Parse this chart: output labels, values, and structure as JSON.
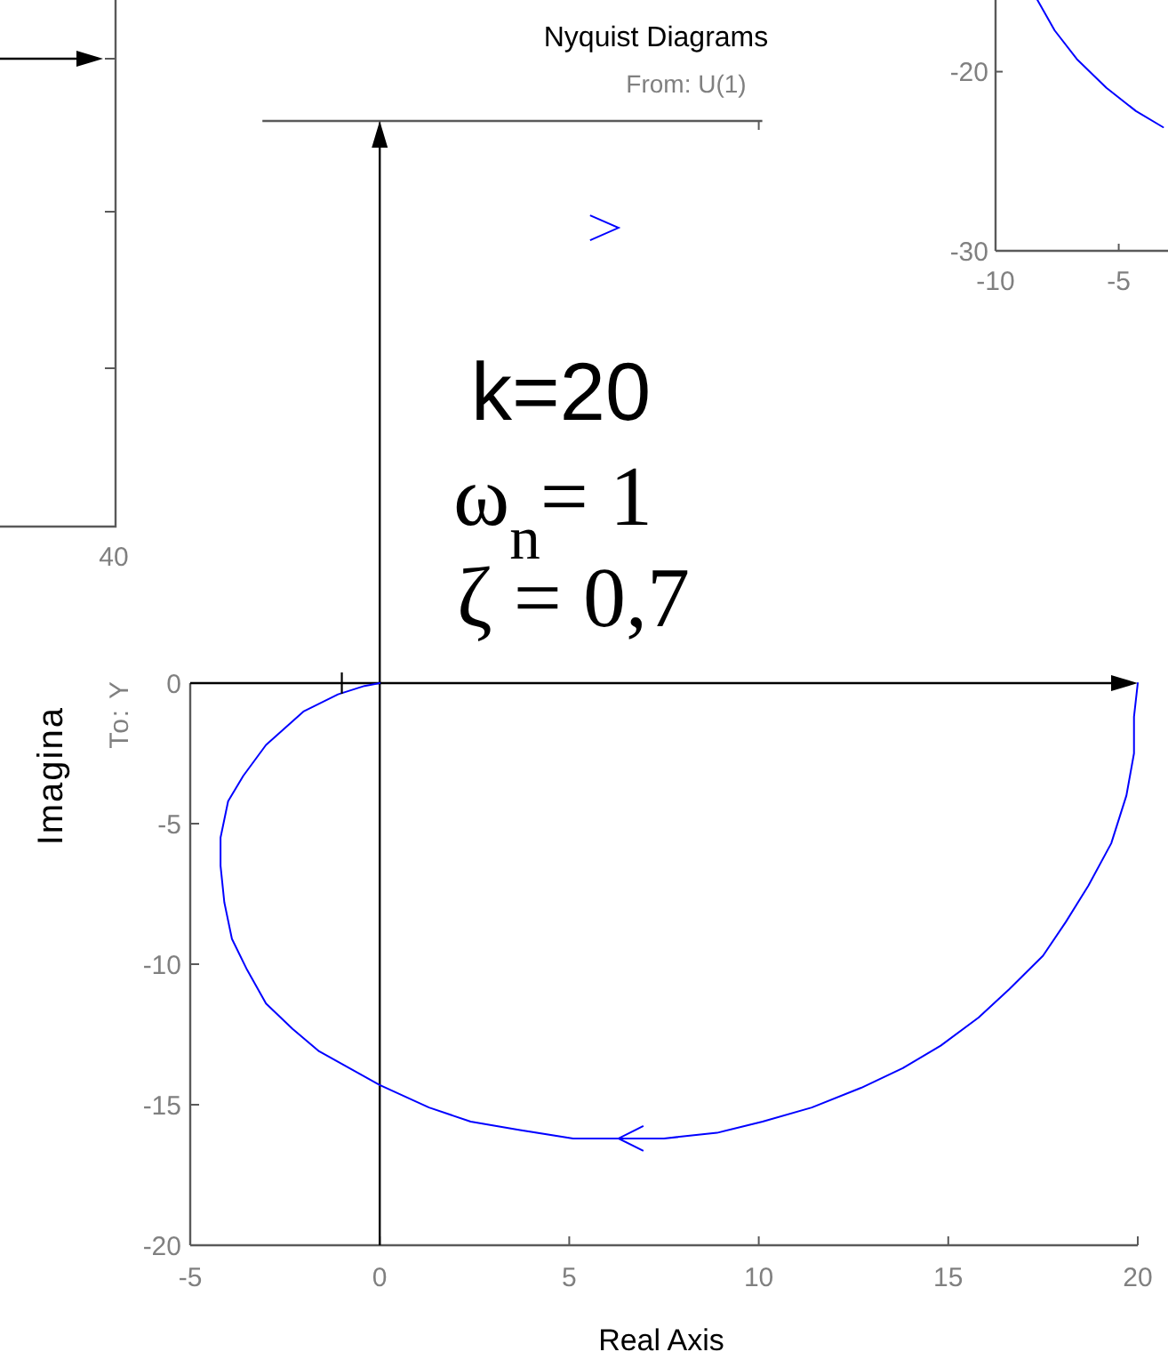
{
  "chart_data": [
    {
      "type": "other",
      "annotations": [
        "40"
      ]
    },
    {
      "type": "line",
      "title": "Nyquist Diagrams",
      "subtitle": "From: U(1)",
      "xlabel": "Real Axis",
      "ylabel": "Imagina",
      "annotations": [
        "To: Y",
        "k=20",
        "ω$_{n}$= 1",
        "ζ = 0,7"
      ],
      "xlim": [
        -5,
        20
      ],
      "ylim": [
        -20,
        0
      ],
      "xticks": [
        -5,
        0,
        5,
        10,
        15,
        20
      ],
      "yticks": [
        -20,
        -15,
        -10,
        -5,
        0
      ],
      "series": [
        {
          "type": "line",
          "color": "#0000ff",
          "x": [
            20,
            19.9,
            19.9,
            19.7,
            19.3,
            18.7,
            18.1,
            17.5,
            16.6,
            15.8,
            14.8,
            13.8,
            12.7,
            11.4,
            10.1,
            8.9,
            7.5,
            5.1,
            3.7,
            2.4,
            1.3,
            0,
            -0.8,
            -1.6,
            -2.3,
            -3,
            -3.5,
            -3.9,
            -4.1,
            -4.2,
            -4.2,
            -4,
            -3.6,
            -3,
            -2,
            -1.1,
            -0.4,
            0
          ],
          "values": [
            0,
            -1.2,
            -2.5,
            -4,
            -5.7,
            -7.2,
            -8.5,
            -9.7,
            -10.9,
            -11.9,
            -12.9,
            -13.7,
            -14.4,
            -15.1,
            -15.6,
            -16,
            -16.2,
            -16.2,
            -15.9,
            -15.6,
            -15.1,
            -14.3,
            -13.7,
            -13.1,
            -12.3,
            -11.4,
            -10.2,
            -9.1,
            -7.8,
            -6.5,
            -5.5,
            -4.2,
            -3.3,
            -2.2,
            -1,
            -0.4,
            -0.1,
            0
          ]
        },
        {
          "type": "scatter",
          "color": "#000000",
          "marker": "cross",
          "x": [
            -1
          ],
          "values": [
            0
          ]
        }
      ]
    },
    {
      "type": "line",
      "xlim": [
        -10,
        -3
      ],
      "ylim": [
        -30,
        -16
      ],
      "xticks": [
        -10,
        -5
      ],
      "yticks": [
        -30,
        -20
      ],
      "series": [
        {
          "color": "#0000ff",
          "x": [
            -8.3,
            -7.6,
            -6.7,
            -5.5,
            -4.3,
            -3.2
          ],
          "values": [
            -16,
            -17.7,
            -19.3,
            -20.9,
            -22.2,
            -23.1
          ]
        }
      ]
    }
  ]
}
